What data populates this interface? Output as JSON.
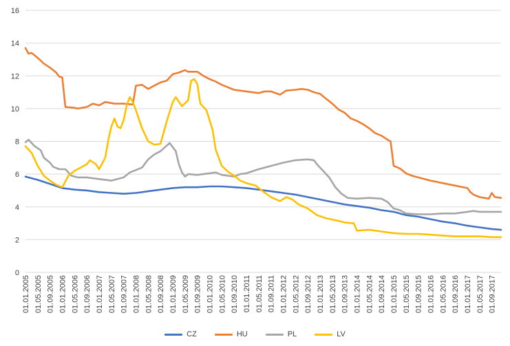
{
  "chart_data": {
    "type": "line",
    "title": "",
    "xlabel": "",
    "ylabel": "",
    "ylim": [
      0,
      16
    ],
    "yticks": [
      0,
      2,
      4,
      6,
      8,
      10,
      12,
      14,
      16
    ],
    "ytick_labels": [
      "0",
      "2",
      "4",
      "6",
      "8",
      "10",
      "12",
      "14",
      "16"
    ],
    "xlim": [
      "01.01.2005",
      "01.12.2017"
    ],
    "xtick_labels": [
      "01.01.2005",
      "01.05.2005",
      "01.09.2005",
      "01.01.2006",
      "01.05.2006",
      "01.09.2006",
      "01.01.2007",
      "01.05.2007",
      "01.09.2007",
      "01.01.2008",
      "01.05.2008",
      "01.09.2008",
      "01.01.2009",
      "01.05.2009",
      "01.09.2009",
      "01.01.2010",
      "01.05.2010",
      "01.09.2010",
      "01.01.2011",
      "01.05.2011",
      "01.09.2011",
      "01.01.2012",
      "01.05.2012",
      "01.09.2012",
      "01.01.2013",
      "01.05.2013",
      "01.09.2013",
      "01.01.2014",
      "01.05.2014",
      "01.09.2014",
      "01.01.2015",
      "01.05.2015",
      "01.09.2015",
      "01.01.2016",
      "01.05.2016",
      "01.09.2016",
      "01.01.2017",
      "01.05.2017",
      "01.09.2017"
    ],
    "grid": "horizontal",
    "legend_position": "bottom",
    "series": [
      {
        "name": "CZ",
        "color": "#4472c4",
        "points": [
          [
            "01.01.2005",
            5.85
          ],
          [
            "01.05.2005",
            5.65
          ],
          [
            "01.09.2005",
            5.4
          ],
          [
            "01.01.2006",
            5.15
          ],
          [
            "01.05.2006",
            5.05
          ],
          [
            "01.09.2006",
            5.0
          ],
          [
            "01.01.2007",
            4.9
          ],
          [
            "01.05.2007",
            4.85
          ],
          [
            "01.09.2007",
            4.8
          ],
          [
            "01.01.2008",
            4.85
          ],
          [
            "01.05.2008",
            4.95
          ],
          [
            "01.09.2008",
            5.05
          ],
          [
            "01.01.2009",
            5.15
          ],
          [
            "01.05.2009",
            5.2
          ],
          [
            "01.09.2009",
            5.2
          ],
          [
            "01.01.2010",
            5.25
          ],
          [
            "01.05.2010",
            5.25
          ],
          [
            "01.09.2010",
            5.2
          ],
          [
            "01.01.2011",
            5.15
          ],
          [
            "01.05.2011",
            5.05
          ],
          [
            "01.09.2011",
            4.95
          ],
          [
            "01.01.2012",
            4.85
          ],
          [
            "01.05.2012",
            4.75
          ],
          [
            "01.09.2012",
            4.6
          ],
          [
            "01.01.2013",
            4.45
          ],
          [
            "01.05.2013",
            4.3
          ],
          [
            "01.09.2013",
            4.15
          ],
          [
            "01.01.2014",
            4.05
          ],
          [
            "01.05.2014",
            3.95
          ],
          [
            "01.09.2014",
            3.8
          ],
          [
            "01.01.2015",
            3.7
          ],
          [
            "01.05.2015",
            3.5
          ],
          [
            "01.09.2015",
            3.4
          ],
          [
            "01.01.2016",
            3.25
          ],
          [
            "01.05.2016",
            3.1
          ],
          [
            "01.09.2016",
            3.0
          ],
          [
            "01.01.2017",
            2.85
          ],
          [
            "01.05.2017",
            2.75
          ],
          [
            "01.09.2017",
            2.65
          ],
          [
            "01.12.2017",
            2.6
          ]
        ]
      },
      {
        "name": "HU",
        "color": "#ed7d31",
        "points": [
          [
            "01.01.2005",
            13.7
          ],
          [
            "01.02.2005",
            13.35
          ],
          [
            "01.03.2005",
            13.4
          ],
          [
            "01.05.2005",
            13.1
          ],
          [
            "01.07.2005",
            12.75
          ],
          [
            "01.09.2005",
            12.5
          ],
          [
            "01.11.2005",
            12.2
          ],
          [
            "01.12.2005",
            11.95
          ],
          [
            "01.01.2006",
            11.9
          ],
          [
            "01.02.2006",
            10.1
          ],
          [
            "01.05.2006",
            10.05
          ],
          [
            "01.06.2006",
            10.0
          ],
          [
            "01.09.2006",
            10.1
          ],
          [
            "01.11.2006",
            10.3
          ],
          [
            "01.01.2007",
            10.2
          ],
          [
            "01.03.2007",
            10.4
          ],
          [
            "01.06.2007",
            10.3
          ],
          [
            "01.09.2007",
            10.3
          ],
          [
            "01.12.2007",
            10.25
          ],
          [
            "01.01.2008",
            11.4
          ],
          [
            "01.03.2008",
            11.45
          ],
          [
            "01.05.2008",
            11.2
          ],
          [
            "01.07.2008",
            11.4
          ],
          [
            "01.09.2008",
            11.6
          ],
          [
            "01.11.2008",
            11.7
          ],
          [
            "01.01.2009",
            12.1
          ],
          [
            "01.03.2009",
            12.2
          ],
          [
            "01.05.2009",
            12.35
          ],
          [
            "01.06.2009",
            12.25
          ],
          [
            "01.09.2009",
            12.25
          ],
          [
            "01.11.2009",
            12.0
          ],
          [
            "01.01.2010",
            11.8
          ],
          [
            "01.03.2010",
            11.65
          ],
          [
            "01.05.2010",
            11.45
          ],
          [
            "01.07.2010",
            11.3
          ],
          [
            "01.09.2010",
            11.15
          ],
          [
            "01.01.2011",
            11.05
          ],
          [
            "01.05.2011",
            10.95
          ],
          [
            "01.07.2011",
            11.05
          ],
          [
            "01.09.2011",
            11.05
          ],
          [
            "01.12.2011",
            10.85
          ],
          [
            "01.02.2012",
            11.1
          ],
          [
            "01.05.2012",
            11.15
          ],
          [
            "01.07.2012",
            11.2
          ],
          [
            "01.09.2012",
            11.15
          ],
          [
            "01.11.2012",
            11.0
          ],
          [
            "01.01.2013",
            10.9
          ],
          [
            "01.03.2013",
            10.6
          ],
          [
            "01.05.2013",
            10.3
          ],
          [
            "01.07.2013",
            9.95
          ],
          [
            "01.09.2013",
            9.75
          ],
          [
            "01.11.2013",
            9.4
          ],
          [
            "01.01.2014",
            9.25
          ],
          [
            "01.03.2014",
            9.05
          ],
          [
            "01.05.2014",
            8.8
          ],
          [
            "01.07.2014",
            8.5
          ],
          [
            "01.09.2014",
            8.35
          ],
          [
            "01.11.2014",
            8.1
          ],
          [
            "01.12.2014",
            8.0
          ],
          [
            "01.01.2015",
            6.5
          ],
          [
            "01.03.2015",
            6.35
          ],
          [
            "01.05.2015",
            6.05
          ],
          [
            "01.07.2015",
            5.9
          ],
          [
            "01.09.2015",
            5.8
          ],
          [
            "01.01.2016",
            5.6
          ],
          [
            "01.05.2016",
            5.45
          ],
          [
            "01.09.2016",
            5.3
          ],
          [
            "01.01.2017",
            5.15
          ],
          [
            "01.02.2017",
            4.9
          ],
          [
            "01.03.2017",
            4.75
          ],
          [
            "01.05.2017",
            4.6
          ],
          [
            "01.08.2017",
            4.5
          ],
          [
            "01.09.2017",
            4.85
          ],
          [
            "01.10.2017",
            4.6
          ],
          [
            "01.12.2017",
            4.55
          ]
        ]
      },
      {
        "name": "PL",
        "color": "#a5a5a5",
        "points": [
          [
            "01.01.2005",
            7.95
          ],
          [
            "01.02.2005",
            8.1
          ],
          [
            "01.04.2005",
            7.7
          ],
          [
            "01.06.2005",
            7.45
          ],
          [
            "01.07.2005",
            7.0
          ],
          [
            "01.09.2005",
            6.7
          ],
          [
            "01.10.2005",
            6.45
          ],
          [
            "01.12.2005",
            6.3
          ],
          [
            "01.02.2006",
            6.3
          ],
          [
            "01.04.2006",
            5.9
          ],
          [
            "01.06.2006",
            5.8
          ],
          [
            "01.09.2006",
            5.8
          ],
          [
            "01.01.2007",
            5.7
          ],
          [
            "01.05.2007",
            5.6
          ],
          [
            "01.09.2007",
            5.8
          ],
          [
            "01.11.2007",
            6.1
          ],
          [
            "01.01.2008",
            6.25
          ],
          [
            "01.03.2008",
            6.4
          ],
          [
            "01.05.2008",
            6.9
          ],
          [
            "01.07.2008",
            7.2
          ],
          [
            "01.09.2008",
            7.4
          ],
          [
            "01.12.2008",
            7.9
          ],
          [
            "01.02.2009",
            7.4
          ],
          [
            "01.03.2009",
            6.6
          ],
          [
            "01.04.2009",
            6.1
          ],
          [
            "01.05.2009",
            5.85
          ],
          [
            "01.06.2009",
            6.0
          ],
          [
            "01.09.2009",
            5.95
          ],
          [
            "01.11.2009",
            6.0
          ],
          [
            "01.01.2010",
            6.05
          ],
          [
            "01.03.2010",
            6.1
          ],
          [
            "01.05.2010",
            5.95
          ],
          [
            "01.07.2010",
            5.9
          ],
          [
            "01.09.2010",
            5.85
          ],
          [
            "01.11.2010",
            6.0
          ],
          [
            "01.01.2011",
            6.05
          ],
          [
            "01.05.2011",
            6.3
          ],
          [
            "01.09.2011",
            6.5
          ],
          [
            "01.01.2012",
            6.7
          ],
          [
            "01.05.2012",
            6.85
          ],
          [
            "01.09.2012",
            6.9
          ],
          [
            "01.11.2012",
            6.85
          ],
          [
            "01.12.2012",
            6.6
          ],
          [
            "01.02.2013",
            6.2
          ],
          [
            "01.04.2013",
            5.8
          ],
          [
            "01.06.2013",
            5.2
          ],
          [
            "01.08.2013",
            4.8
          ],
          [
            "01.10.2013",
            4.55
          ],
          [
            "01.01.2014",
            4.5
          ],
          [
            "01.05.2014",
            4.55
          ],
          [
            "01.09.2014",
            4.5
          ],
          [
            "01.11.2014",
            4.3
          ],
          [
            "01.01.2015",
            3.9
          ],
          [
            "01.03.2015",
            3.8
          ],
          [
            "01.05.2015",
            3.6
          ],
          [
            "01.09.2015",
            3.55
          ],
          [
            "01.01.2016",
            3.55
          ],
          [
            "01.05.2016",
            3.6
          ],
          [
            "01.09.2016",
            3.6
          ],
          [
            "01.01.2017",
            3.7
          ],
          [
            "01.03.2017",
            3.75
          ],
          [
            "01.05.2017",
            3.7
          ],
          [
            "01.09.2017",
            3.7
          ],
          [
            "01.12.2017",
            3.7
          ]
        ]
      },
      {
        "name": "LV",
        "color": "#ffc000",
        "points": [
          [
            "01.01.2005",
            7.7
          ],
          [
            "01.03.2005",
            7.3
          ],
          [
            "01.05.2005",
            6.5
          ],
          [
            "01.07.2005",
            5.9
          ],
          [
            "01.09.2005",
            5.6
          ],
          [
            "01.11.2005",
            5.35
          ],
          [
            "01.01.2006",
            5.2
          ],
          [
            "01.03.2006",
            5.9
          ],
          [
            "01.05.2006",
            6.2
          ],
          [
            "01.07.2006",
            6.4
          ],
          [
            "01.09.2006",
            6.6
          ],
          [
            "01.10.2006",
            6.85
          ],
          [
            "01.12.2006",
            6.6
          ],
          [
            "01.01.2007",
            6.3
          ],
          [
            "01.03.2007",
            7.0
          ],
          [
            "01.04.2007",
            8.1
          ],
          [
            "01.05.2007",
            8.9
          ],
          [
            "01.06.2007",
            9.4
          ],
          [
            "01.07.2007",
            8.9
          ],
          [
            "01.08.2007",
            8.8
          ],
          [
            "01.09.2007",
            9.3
          ],
          [
            "01.10.2007",
            10.2
          ],
          [
            "01.11.2007",
            10.7
          ],
          [
            "01.12.2007",
            10.4
          ],
          [
            "01.01.2008",
            9.9
          ],
          [
            "01.03.2008",
            8.8
          ],
          [
            "01.05.2008",
            8.0
          ],
          [
            "01.07.2008",
            7.8
          ],
          [
            "01.09.2008",
            7.85
          ],
          [
            "01.11.2008",
            9.2
          ],
          [
            "01.01.2009",
            10.4
          ],
          [
            "01.02.2009",
            10.7
          ],
          [
            "01.04.2009",
            10.15
          ],
          [
            "01.06.2009",
            10.5
          ],
          [
            "01.07.2009",
            11.7
          ],
          [
            "01.08.2009",
            11.8
          ],
          [
            "01.09.2009",
            11.5
          ],
          [
            "01.10.2009",
            10.3
          ],
          [
            "01.12.2009",
            9.9
          ],
          [
            "01.02.2010",
            8.7
          ],
          [
            "01.03.2010",
            7.5
          ],
          [
            "01.05.2010",
            6.5
          ],
          [
            "01.07.2010",
            6.15
          ],
          [
            "01.09.2010",
            5.9
          ],
          [
            "01.11.2010",
            5.6
          ],
          [
            "01.01.2011",
            5.45
          ],
          [
            "01.04.2011",
            5.3
          ],
          [
            "01.06.2011",
            5.0
          ],
          [
            "01.09.2011",
            4.6
          ],
          [
            "01.12.2011",
            4.35
          ],
          [
            "01.02.2012",
            4.6
          ],
          [
            "01.04.2012",
            4.45
          ],
          [
            "01.06.2012",
            4.15
          ],
          [
            "01.09.2012",
            3.9
          ],
          [
            "01.12.2012",
            3.5
          ],
          [
            "01.03.2013",
            3.3
          ],
          [
            "01.07.2013",
            3.15
          ],
          [
            "01.09.2013",
            3.05
          ],
          [
            "01.12.2013",
            3.0
          ],
          [
            "01.01.2014",
            2.55
          ],
          [
            "01.05.2014",
            2.6
          ],
          [
            "01.09.2014",
            2.5
          ],
          [
            "01.01.2015",
            2.4
          ],
          [
            "01.05.2015",
            2.35
          ],
          [
            "01.09.2015",
            2.35
          ],
          [
            "01.01.2016",
            2.3
          ],
          [
            "01.05.2016",
            2.25
          ],
          [
            "01.09.2016",
            2.2
          ],
          [
            "01.01.2017",
            2.2
          ],
          [
            "01.05.2017",
            2.2
          ],
          [
            "01.09.2017",
            2.15
          ],
          [
            "01.12.2017",
            2.15
          ]
        ]
      }
    ]
  }
}
